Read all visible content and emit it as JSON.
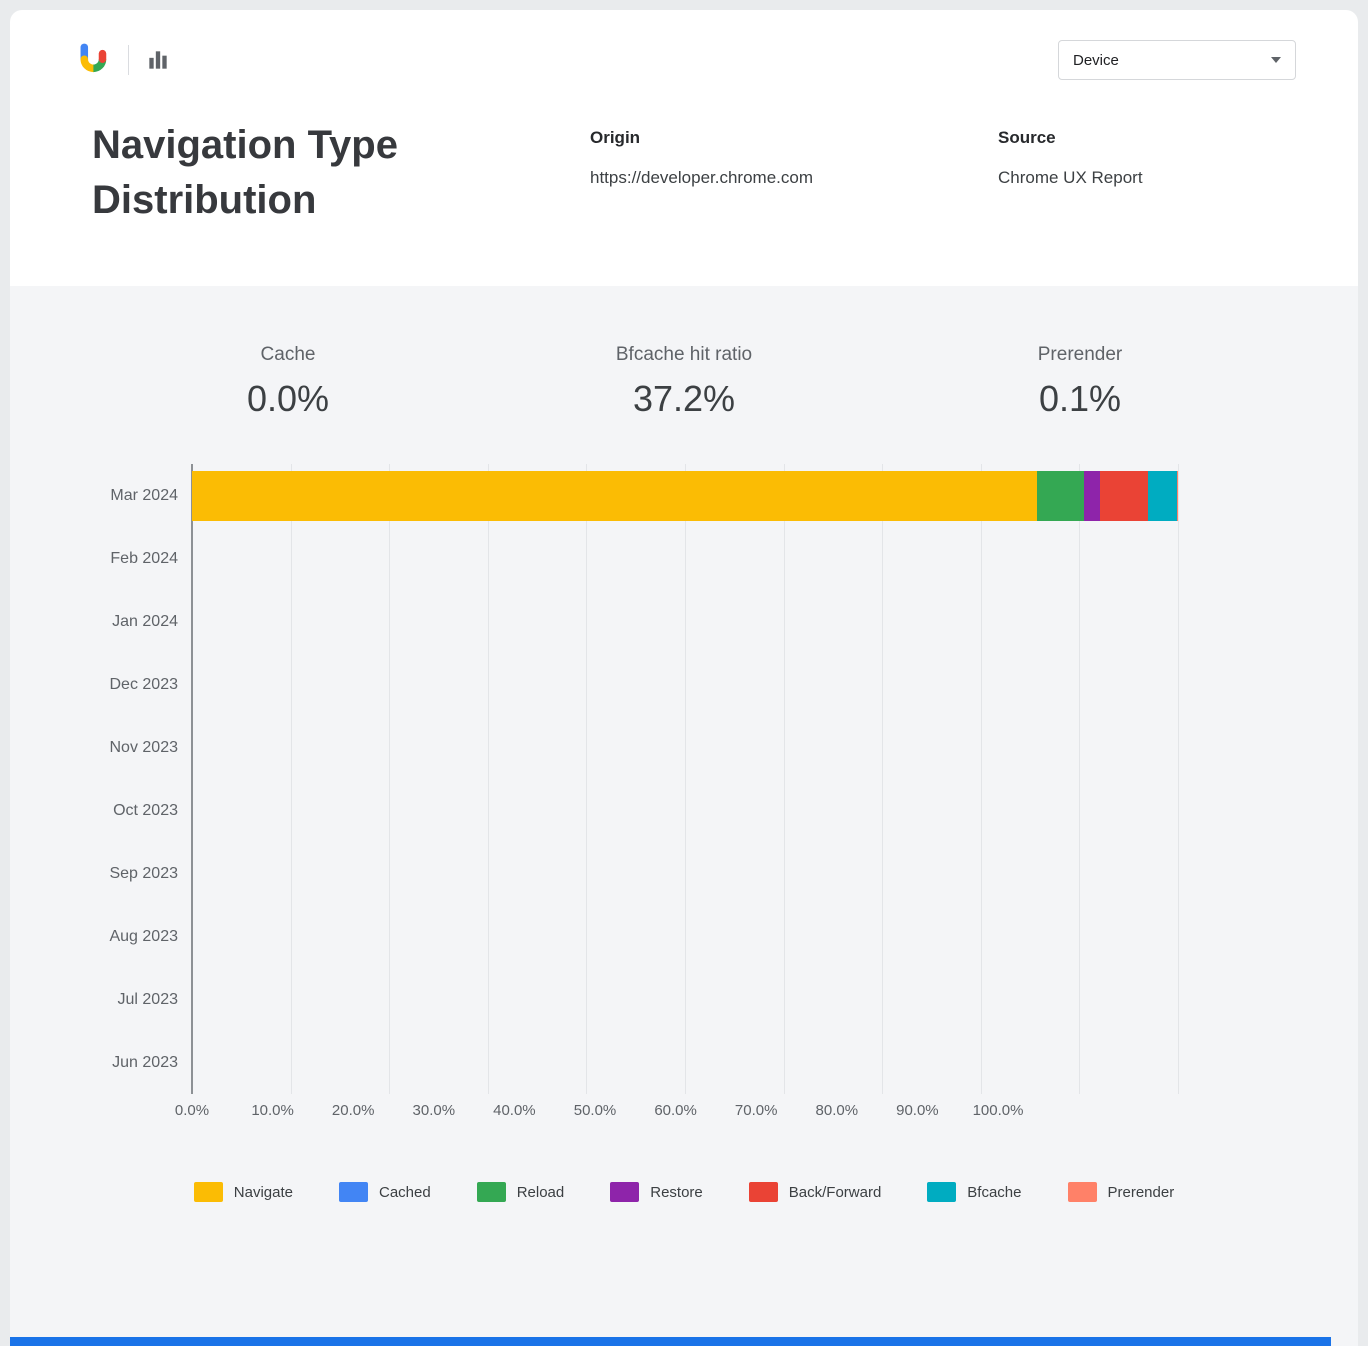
{
  "header": {
    "logo_icon": "crux-logo",
    "chart_icon": "bar-chart-icon",
    "device_selector": {
      "label": "Device",
      "icon": "chevron-down-icon"
    },
    "title": "Navigation Type Distribution",
    "origin_label": "Origin",
    "origin_value": "https://developer.chrome.com",
    "source_label": "Source",
    "source_value": "Chrome UX Report"
  },
  "stats": [
    {
      "label": "Cache",
      "value": "0.0%"
    },
    {
      "label": "Bfcache hit ratio",
      "value": "37.2%"
    },
    {
      "label": "Prerender",
      "value": "0.1%"
    }
  ],
  "chart_data": {
    "type": "bar",
    "orientation": "horizontal",
    "stacked": true,
    "grid": true,
    "legend_position": "bottom",
    "xlim": [
      0,
      100
    ],
    "x_ticks": [
      "0.0%",
      "10.0%",
      "20.0%",
      "30.0%",
      "40.0%",
      "50.0%",
      "60.0%",
      "70.0%",
      "80.0%",
      "90.0%",
      "100.0%"
    ],
    "categories": [
      "Mar 2024",
      "Feb 2024",
      "Jan 2024",
      "Dec 2023",
      "Nov 2023",
      "Oct 2023",
      "Sep 2023",
      "Aug 2023",
      "Jul 2023",
      "Jun 2023"
    ],
    "series": [
      {
        "name": "Navigate",
        "color": "#fbbc04",
        "values": [
          85.7,
          0,
          0,
          0,
          0,
          0,
          0,
          0,
          0,
          0
        ]
      },
      {
        "name": "Cached",
        "color": "#4285f4",
        "values": [
          0,
          0,
          0,
          0,
          0,
          0,
          0,
          0,
          0,
          0
        ]
      },
      {
        "name": "Reload",
        "color": "#34a853",
        "values": [
          4.8,
          0,
          0,
          0,
          0,
          0,
          0,
          0,
          0,
          0
        ]
      },
      {
        "name": "Restore",
        "color": "#8e24aa",
        "values": [
          1.6,
          0,
          0,
          0,
          0,
          0,
          0,
          0,
          0,
          0
        ]
      },
      {
        "name": "Back/Forward",
        "color": "#ea4335",
        "values": [
          4.9,
          0,
          0,
          0,
          0,
          0,
          0,
          0,
          0,
          0
        ]
      },
      {
        "name": "Bfcache",
        "color": "#00acc1",
        "values": [
          2.9,
          0,
          0,
          0,
          0,
          0,
          0,
          0,
          0,
          0
        ]
      },
      {
        "name": "Prerender",
        "color": "#ff8168",
        "values": [
          0.1,
          0,
          0,
          0,
          0,
          0,
          0,
          0,
          0,
          0
        ]
      }
    ]
  },
  "colors": {
    "accent_blue": "#1a73e8",
    "section_bg": "#f4f5f7",
    "axis": "#8d9195",
    "gridline": "#e3e5e8"
  }
}
